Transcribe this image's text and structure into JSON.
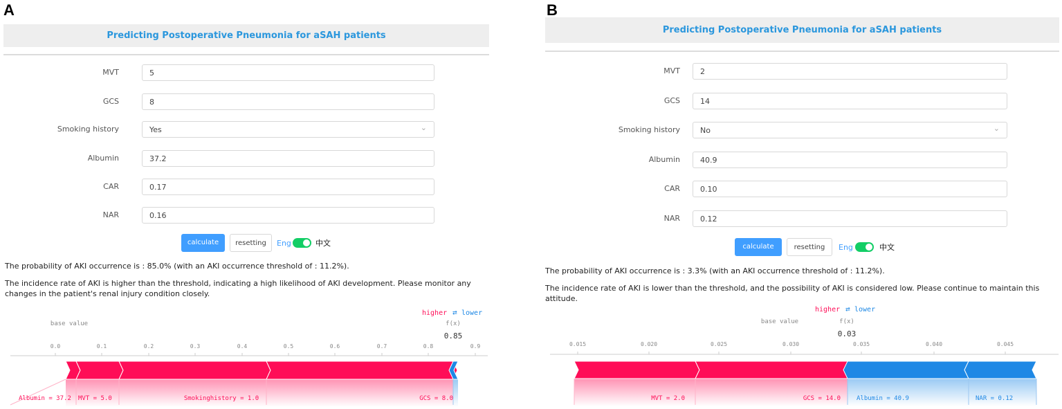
{
  "panels": [
    {
      "letter": "A",
      "title": "Predicting Postoperative Pneumonia for aSAH patients",
      "fields": [
        {
          "label": "MVT",
          "value": "5"
        },
        {
          "label": "GCS",
          "value": "8"
        },
        {
          "label": "Smoking history",
          "value": "Yes"
        },
        {
          "label": "Albumin",
          "value": "37.2"
        },
        {
          "label": "CAR",
          "value": "0.17"
        },
        {
          "label": "NAR",
          "value": "0.16"
        }
      ],
      "buttons": {
        "calculate": "calculate",
        "reset": "resetting",
        "lang_en": "Eng",
        "lang_zh": "中文"
      },
      "result": "The probability of AKI occurrence is : 85.0% (with an AKI occurrence threshold of : 11.2%).",
      "interpretation": "The incidence rate of AKI is higher than the threshold, indicating a high likelihood of AKI development. Please monitor any changes in the patient's renal injury condition closely.",
      "force_plot": {
        "higher": "higher",
        "lower": "lower",
        "base_value": "base value",
        "fx_label": "f(x)",
        "fx_value": "0.85",
        "ticks": [
          "0.0",
          "0.1",
          "0.2",
          "0.3",
          "0.4",
          "0.5",
          "0.6",
          "0.7",
          "0.8",
          "0.9"
        ],
        "features": [
          "Albumin = 37.2",
          "MVT = 5.0",
          "Smokinghistory = 1.0",
          "GCS = 8.0"
        ]
      }
    },
    {
      "letter": "B",
      "title": "Predicting Postoperative Pneumonia for aSAH patients",
      "fields": [
        {
          "label": "MVT",
          "value": "2"
        },
        {
          "label": "GCS",
          "value": "14"
        },
        {
          "label": "Smoking history",
          "value": "No"
        },
        {
          "label": "Albumin",
          "value": "40.9"
        },
        {
          "label": "CAR",
          "value": "0.10"
        },
        {
          "label": "NAR",
          "value": "0.12"
        }
      ],
      "buttons": {
        "calculate": "calculate",
        "reset": "resetting",
        "lang_en": "Eng",
        "lang_zh": "中文"
      },
      "result": "The probability of AKI occurrence is : 3.3% (with an AKI occurrence threshold of : 11.2%).",
      "interpretation": "The incidence rate of AKI is lower than the threshold, and the possibility of AKI is considered low. Please continue to maintain this attitude.",
      "force_plot": {
        "higher": "higher",
        "lower": "lower",
        "base_value": "base value",
        "fx_label": "f(x)",
        "fx_value": "0.03",
        "ticks": [
          "0.015",
          "0.020",
          "0.025",
          "0.030",
          "0.035",
          "0.040",
          "0.045"
        ],
        "features": [
          "MVT = 2.0",
          "GCS = 14.0",
          "Albumin = 40.9",
          "NAR = 0.12"
        ]
      }
    }
  ]
}
